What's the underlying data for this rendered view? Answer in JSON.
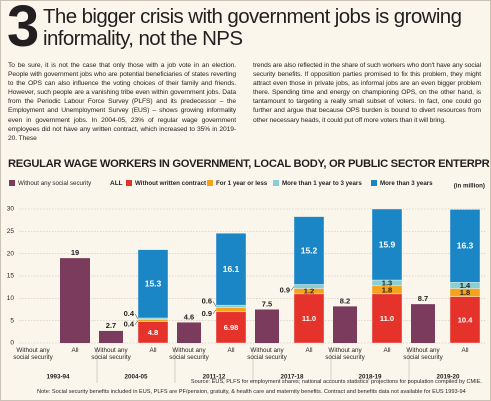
{
  "header": {
    "number": "3",
    "title": "The bigger crisis with government jobs is growing informality, not the NPS"
  },
  "body": {
    "paragraphs": [
      "To be sure, it is not the case that only those with a job vote in an election. People with government jobs who are potential beneficiaries of states reverting to the OPS can also influence the voting choices of their family and friends. However, such people are a vanishing tribe even within government jobs. Data from the Periodic Labour Force Survey (PLFS) and its predecessor – the Employment and Unemployment Survey (EUS) – shows growing informality even in government jobs. In 2004-05, 23% of regular wage government employees did not have any written contract, which increased to 35% in 2019-20. These",
      "trends are also reflected in the share of such workers who don't have any social security benefits. If opposition parties promised to fix this problem, they might attract even those in private jobs, as informal jobs are an even bigger problem there. Spending time and energy on championing OPS, on the other hand, is tantamount to targeting a really small subset of voters. In fact, one could go further and argue that because OPS burden is bound to divert resources from other necessary heads, it could put off more voters than it will bring."
    ]
  },
  "chart_data": {
    "type": "grouped-stacked-bar",
    "title": "REGULAR WAGE WORKERS IN GOVERNMENT, LOCAL BODY, OR PUBLIC SECTOR ENTERPRISE",
    "unit_label": "(in million)",
    "legend_all_label": "ALL",
    "categories": [
      "1993-94",
      "2004-05",
      "2011-12",
      "2017-18",
      "2018-19",
      "2019-20"
    ],
    "bar_labels": [
      "Without any social security",
      "All"
    ],
    "ylim": [
      0,
      30
    ],
    "yticks": [
      0,
      5,
      10,
      15,
      20,
      25,
      30
    ],
    "grid": true,
    "all_values": [
      19,
      null,
      null,
      null,
      null,
      null
    ],
    "all_color": "#7b3b5c",
    "series": [
      {
        "name": "Without any social security",
        "color": "#7b3b5c",
        "values": [
          null,
          2.7,
          4.6,
          7.5,
          8.2,
          8.7
        ]
      },
      {
        "name": "Without written contract",
        "color": "#e5322b",
        "values": [
          null,
          4.8,
          6.98,
          11.0,
          11.0,
          10.4
        ],
        "value_labels": [
          null,
          "4.8",
          "6.98",
          "11.0",
          "11.0",
          "10.4"
        ],
        "stack": true
      },
      {
        "name": "For 1 year or less",
        "color": "#f6a31b",
        "values": [
          null,
          0.4,
          0.9,
          1.2,
          1.8,
          1.8
        ],
        "stack": true
      },
      {
        "name": "More than 1 year to 3 years",
        "color": "#86d0d6",
        "values": [
          null,
          0.4,
          0.6,
          0.9,
          1.3,
          1.4
        ],
        "stack": true
      },
      {
        "name": "More than 3 years",
        "color": "#1a86c6",
        "values": [
          null,
          15.3,
          16.1,
          15.2,
          15.9,
          16.3
        ],
        "stack": true
      }
    ]
  },
  "source": "Source: EUS, PLFS for employment shares; national accounts statistics' projections for population compiled by CMIE.",
  "note": "Note: Social security benefits included in EUS, PLFS are PF/pension, gratuity, & health care and maternity benefits. Contract and benefits data not available for EUS 1993-94"
}
